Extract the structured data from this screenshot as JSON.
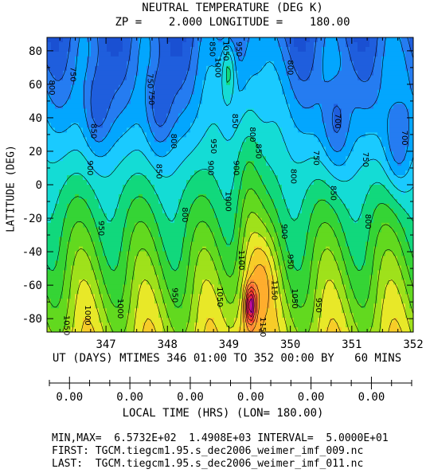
{
  "chart_data": {
    "type": "heatmap",
    "title": "NEUTRAL TEMPERATURE (DEG K)",
    "subtitle": "ZP =    2.000 LONGITUDE =    180.00",
    "ylabel": "LATITUDE (DEG)",
    "xlabel": "UT (DAYS) MTIMES 346 01:00 TO 352 00:00 BY   60 MINS",
    "local_time_label": "LOCAL TIME (HRS) (LON= 180.00)",
    "xlim": [
      346.04,
      352.0
    ],
    "ylim": [
      -88,
      88
    ],
    "x_ticks": [
      "347",
      "348",
      "349",
      "350",
      "351",
      "352"
    ],
    "y_ticks": [
      "80",
      "60",
      "40",
      "20",
      "0",
      "-20",
      "-40",
      "-60",
      "-80"
    ],
    "local_time_ticks": [
      "0.00",
      "0.00",
      "0.00",
      "0.00",
      "0.00",
      "0.00"
    ],
    "contour_interval": 50,
    "contour_labels": [
      {
        "x": 346.12,
        "y": 58,
        "text": "800"
      },
      {
        "x": 346.46,
        "y": 66,
        "text": "750"
      },
      {
        "x": 346.8,
        "y": 32,
        "text": "850"
      },
      {
        "x": 346.74,
        "y": 10,
        "text": "900"
      },
      {
        "x": 346.92,
        "y": -26,
        "text": "950"
      },
      {
        "x": 346.7,
        "y": -78,
        "text": "1000"
      },
      {
        "x": 346.36,
        "y": -84,
        "text": "1050"
      },
      {
        "x": 347.23,
        "y": -74,
        "text": "1000"
      },
      {
        "x": 347.72,
        "y": 62,
        "text": "750"
      },
      {
        "x": 347.74,
        "y": 52,
        "text": "750"
      },
      {
        "x": 348.1,
        "y": 26,
        "text": "800"
      },
      {
        "x": 347.86,
        "y": 8,
        "text": "850"
      },
      {
        "x": 348.28,
        "y": -18,
        "text": "800"
      },
      {
        "x": 348.12,
        "y": -66,
        "text": "950"
      },
      {
        "x": 348.73,
        "y": 81,
        "text": "850"
      },
      {
        "x": 348.95,
        "y": 80,
        "text": "1050"
      },
      {
        "x": 348.82,
        "y": 70,
        "text": "1000"
      },
      {
        "x": 349.16,
        "y": 81,
        "text": "950"
      },
      {
        "x": 349.1,
        "y": 38,
        "text": "850"
      },
      {
        "x": 348.75,
        "y": 23,
        "text": "950"
      },
      {
        "x": 348.7,
        "y": 10,
        "text": "900"
      },
      {
        "x": 349.12,
        "y": 10,
        "text": "900"
      },
      {
        "x": 349.38,
        "y": 30,
        "text": "800"
      },
      {
        "x": 349.48,
        "y": 20,
        "text": "850"
      },
      {
        "x": 348.99,
        "y": -10,
        "text": "1000"
      },
      {
        "x": 349.2,
        "y": -45,
        "text": "1100"
      },
      {
        "x": 348.85,
        "y": -67,
        "text": "1050"
      },
      {
        "x": 349.55,
        "y": -85,
        "text": "1150"
      },
      {
        "x": 349.74,
        "y": -63,
        "text": "1150"
      },
      {
        "x": 350.0,
        "y": 70,
        "text": "800"
      },
      {
        "x": 350.05,
        "y": 5,
        "text": "800"
      },
      {
        "x": 349.9,
        "y": -28,
        "text": "900"
      },
      {
        "x": 350.0,
        "y": -46,
        "text": "950"
      },
      {
        "x": 350.07,
        "y": -68,
        "text": "1050"
      },
      {
        "x": 350.46,
        "y": -72,
        "text": "950"
      },
      {
        "x": 350.42,
        "y": 16,
        "text": "750"
      },
      {
        "x": 350.77,
        "y": 38,
        "text": "700"
      },
      {
        "x": 350.7,
        "y": -5,
        "text": "850"
      },
      {
        "x": 351.22,
        "y": 15,
        "text": "750"
      },
      {
        "x": 351.26,
        "y": -22,
        "text": "800"
      },
      {
        "x": 351.86,
        "y": 28,
        "text": "700"
      }
    ]
  },
  "footer": {
    "minmax": "MIN,MAX=  6.5732E+02  1.4908E+03 INTERVAL=  5.0000E+01",
    "first": "FIRST: TGCM.tiegcm1.95.s_dec2006_weimer_imf_009.nc",
    "last": "LAST:  TGCM.tiegcm1.95.s_dec2006_weimer_imf_011.nc"
  }
}
